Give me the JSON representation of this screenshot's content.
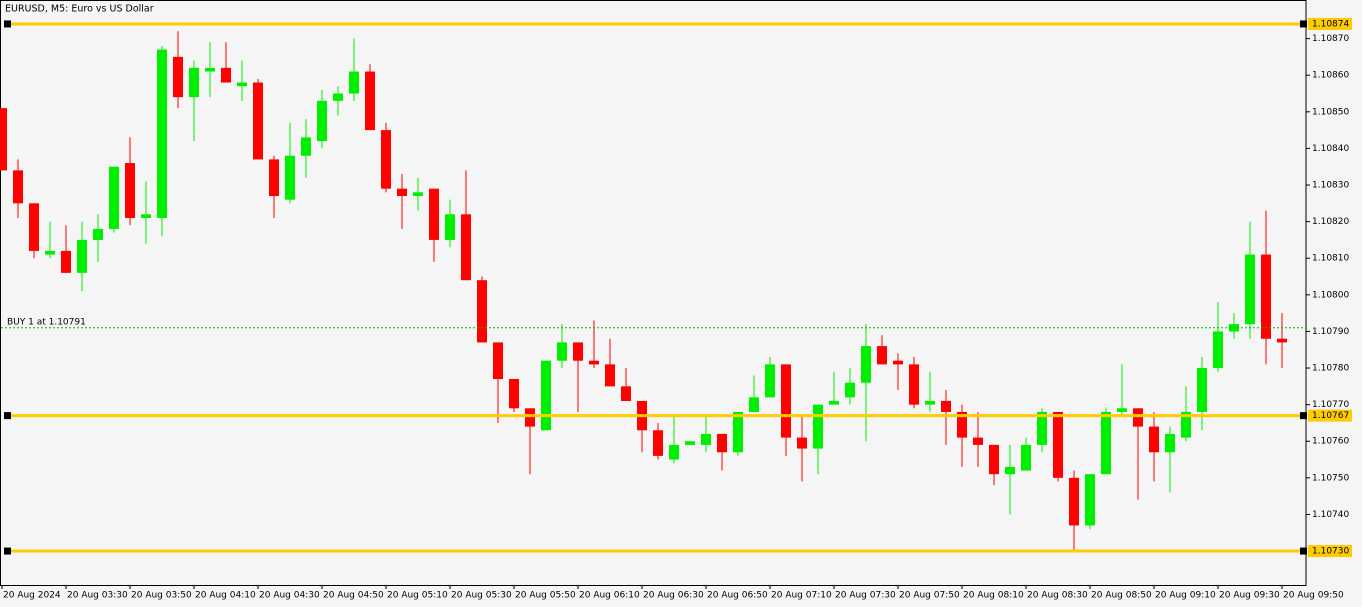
{
  "chart_data": {
    "type": "candlestick",
    "title": "EURUSD, M5:  Euro vs US Dollar",
    "categories": [
      "20 Aug 2024",
      null,
      null,
      null,
      "20 Aug 03:30",
      null,
      null,
      null,
      "20 Aug 03:50",
      null,
      null,
      null,
      "20 Aug 04:10",
      null,
      null,
      null,
      "20 Aug 04:30",
      null,
      null,
      null,
      "20 Aug 04:50",
      null,
      null,
      null,
      "20 Aug 05:10",
      null,
      null,
      null,
      "20 Aug 05:30",
      null,
      null,
      null,
      "20 Aug 05:50",
      null,
      null,
      null,
      "20 Aug 06:10",
      null,
      null,
      null,
      "20 Aug 06:30",
      null,
      null,
      null,
      "20 Aug 06:50",
      null,
      null,
      null,
      "20 Aug 07:10",
      null,
      null,
      null,
      "20 Aug 07:30",
      null,
      null,
      null,
      "20 Aug 07:50",
      null,
      null,
      null,
      "20 Aug 08:10",
      null,
      null,
      null,
      "20 Aug 08:30",
      null,
      null,
      null,
      "20 Aug 08:50",
      null,
      null,
      null,
      "20 Aug 09:10",
      null,
      null,
      null,
      "20 Aug 09:30",
      null,
      null,
      null,
      "20 Aug 09:50"
    ],
    "open": [
      1.10851,
      1.10834,
      1.10825,
      1.10811,
      1.10812,
      1.10806,
      1.10815,
      1.10818,
      1.10836,
      1.10821,
      1.10821,
      1.10865,
      1.10854,
      1.10861,
      1.10862,
      1.10857,
      1.10858,
      1.10837,
      1.10826,
      1.10838,
      1.10842,
      1.10853,
      1.10855,
      1.10861,
      1.10845,
      1.10829,
      1.10827,
      1.10829,
      1.10815,
      1.10822,
      1.10804,
      1.10787,
      1.10777,
      1.10769,
      1.10763,
      1.10782,
      1.10787,
      1.10782,
      1.10781,
      1.10775,
      1.10771,
      1.10763,
      1.10755,
      1.10759,
      1.10759,
      1.10762,
      1.10757,
      1.10768,
      1.10772,
      1.10781,
      1.10761,
      1.10758,
      1.1077,
      1.10772,
      1.10776,
      1.10786,
      1.10782,
      1.10781,
      1.1077,
      1.10771,
      1.10768,
      1.10761,
      1.10759,
      1.10751,
      1.10752,
      1.10759,
      1.10768,
      1.1075,
      1.10737,
      1.10751,
      1.10768,
      1.10769,
      1.10764,
      1.10757,
      1.10761,
      1.10768,
      1.1078,
      1.1079,
      1.10792,
      1.10811,
      1.10788
    ],
    "high": [
      1.10851,
      1.10837,
      1.10825,
      1.1082,
      1.10819,
      1.1082,
      1.10822,
      1.10835,
      1.10843,
      1.10831,
      1.10868,
      1.10872,
      1.10864,
      1.10869,
      1.10869,
      1.10864,
      1.10859,
      1.10838,
      1.10847,
      1.10848,
      1.10856,
      1.10857,
      1.1087,
      1.10863,
      1.10847,
      1.10833,
      1.10832,
      1.10829,
      1.10826,
      1.10834,
      1.10805,
      1.10787,
      1.10777,
      1.10769,
      1.10782,
      1.10792,
      1.10787,
      1.10793,
      1.10788,
      1.1078,
      1.10771,
      1.10765,
      1.10767,
      1.1076,
      1.10767,
      1.10762,
      1.10768,
      1.10778,
      1.10783,
      1.10781,
      1.10767,
      1.1077,
      1.10779,
      1.1078,
      1.10792,
      1.10789,
      1.10784,
      1.10783,
      1.10779,
      1.10774,
      1.1077,
      1.10768,
      1.10759,
      1.10759,
      1.10761,
      1.10769,
      1.10768,
      1.10752,
      1.10751,
      1.10769,
      1.10781,
      1.10769,
      1.10768,
      1.10764,
      1.10775,
      1.10783,
      1.10798,
      1.10795,
      1.1082,
      1.10823,
      1.10795
    ],
    "low": [
      1.10834,
      1.10821,
      1.1081,
      1.1081,
      1.10806,
      1.10801,
      1.10809,
      1.10817,
      1.10819,
      1.10814,
      1.10816,
      1.10851,
      1.10842,
      1.10854,
      1.10858,
      1.10853,
      1.10837,
      1.10821,
      1.10825,
      1.10832,
      1.1084,
      1.10849,
      1.10853,
      1.10845,
      1.10828,
      1.10818,
      1.10823,
      1.10809,
      1.10813,
      1.10804,
      1.10787,
      1.10765,
      1.10768,
      1.10751,
      1.10763,
      1.1078,
      1.10768,
      1.1078,
      1.10775,
      1.10771,
      1.10757,
      1.10755,
      1.10754,
      1.10759,
      1.10757,
      1.10752,
      1.10756,
      1.10768,
      1.10772,
      1.10756,
      1.10749,
      1.10751,
      1.1077,
      1.1077,
      1.1076,
      1.10781,
      1.10774,
      1.10769,
      1.10768,
      1.10759,
      1.10753,
      1.10753,
      1.10748,
      1.1074,
      1.10752,
      1.10757,
      1.10749,
      1.1073,
      1.10736,
      1.10751,
      1.10767,
      1.10744,
      1.10749,
      1.10746,
      1.1076,
      1.10763,
      1.10779,
      1.10788,
      1.10788,
      1.10781,
      1.1078
    ],
    "close": [
      1.10834,
      1.10825,
      1.10812,
      1.10812,
      1.10806,
      1.10815,
      1.10818,
      1.10835,
      1.10821,
      1.10822,
      1.10867,
      1.10854,
      1.10862,
      1.10862,
      1.10858,
      1.10858,
      1.10837,
      1.10827,
      1.10838,
      1.10843,
      1.10853,
      1.10855,
      1.10861,
      1.10845,
      1.10829,
      1.10827,
      1.10828,
      1.10815,
      1.10822,
      1.10804,
      1.10787,
      1.10777,
      1.10769,
      1.10764,
      1.10782,
      1.10787,
      1.10782,
      1.10781,
      1.10775,
      1.10771,
      1.10763,
      1.10756,
      1.10759,
      1.1076,
      1.10762,
      1.10757,
      1.10768,
      1.10772,
      1.10781,
      1.10761,
      1.10758,
      1.1077,
      1.10771,
      1.10776,
      1.10786,
      1.10781,
      1.10781,
      1.1077,
      1.10771,
      1.10768,
      1.10761,
      1.10759,
      1.10751,
      1.10753,
      1.10759,
      1.10768,
      1.1075,
      1.10737,
      1.10751,
      1.10768,
      1.10769,
      1.10764,
      1.10757,
      1.10762,
      1.10768,
      1.1078,
      1.1079,
      1.10792,
      1.10811,
      1.10788,
      1.10787
    ],
    "up_color": "#00ee00",
    "down_color": "#ff0000",
    "ylim": [
      1.10721,
      1.1088
    ],
    "yticks": [
      {
        "value": 1.1074,
        "label": "1.10740"
      },
      {
        "value": 1.1075,
        "label": "1.10750"
      },
      {
        "value": 1.1076,
        "label": "1.10760"
      },
      {
        "value": 1.1077,
        "label": "1.10770"
      },
      {
        "value": 1.1078,
        "label": "1.10780"
      },
      {
        "value": 1.1079,
        "label": "1.10790"
      },
      {
        "value": 1.108,
        "label": "1.10800"
      },
      {
        "value": 1.1081,
        "label": "1.10810"
      },
      {
        "value": 1.1082,
        "label": "1.10820"
      },
      {
        "value": 1.1083,
        "label": "1.10830"
      },
      {
        "value": 1.1084,
        "label": "1.10840"
      },
      {
        "value": 1.1085,
        "label": "1.10850"
      },
      {
        "value": 1.1086,
        "label": "1.10860"
      },
      {
        "value": 1.1087,
        "label": "1.10870"
      }
    ],
    "levels": {
      "values": [
        1.10874,
        1.10767,
        1.1073
      ],
      "value_labels": [
        "1.10874",
        "1.10767",
        "1.10730"
      ],
      "color": "#ffcc00"
    },
    "buy_line": {
      "label": "BUY 1 at 1.10791",
      "value": 1.10791,
      "color": "#00c000"
    }
  }
}
